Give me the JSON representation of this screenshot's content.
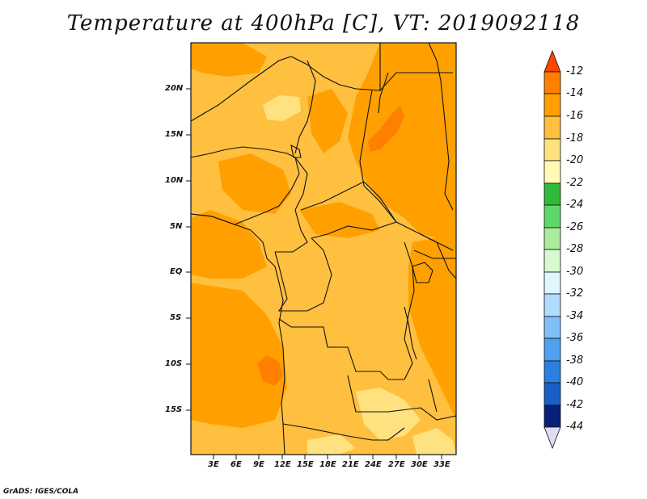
{
  "title": "Temperature at 400hPa [C], VT: 2019092118",
  "credit": "GrADS: IGES/COLA",
  "map": {
    "lon_range": [
      0,
      35
    ],
    "lat_range": [
      -20,
      25
    ],
    "lat_ticks": [
      "20N",
      "15N",
      "10N",
      "5N",
      "EQ",
      "5S",
      "10S",
      "15S"
    ],
    "lon_ticks": [
      "3E",
      "6E",
      "9E",
      "12E",
      "15E",
      "18E",
      "21E",
      "24E",
      "27E",
      "30E",
      "33E"
    ]
  },
  "colorbar": {
    "labels": [
      "-12",
      "-14",
      "-16",
      "-18",
      "-20",
      "-22",
      "-24",
      "-26",
      "-28",
      "-30",
      "-32",
      "-34",
      "-36",
      "-38",
      "-40",
      "-42",
      "-44"
    ],
    "colors": [
      "#ff4500",
      "#ff7f00",
      "#ffa000",
      "#ffbf3f",
      "#ffe27f",
      "#fffab4",
      "#2fba3a",
      "#5fd86a",
      "#a8ec9c",
      "#d8f8d0",
      "#dff6ff",
      "#b0dcff",
      "#80c0f8",
      "#4ea0f0",
      "#2880e0",
      "#1a5fc8",
      "#1040a8",
      "#08207a",
      "#dcdcf4"
    ]
  },
  "chart_data": {
    "type": "map",
    "title": "Temperature at 400hPa [C], VT: 2019092118",
    "variable": "Temperature",
    "level": "400hPa",
    "units": "C",
    "valid_time": "2019092118",
    "domain": {
      "lon": [
        0,
        35
      ],
      "lat": [
        -20,
        25
      ]
    },
    "contour_levels": [
      -44,
      -42,
      -40,
      -38,
      -36,
      -34,
      -32,
      -30,
      -28,
      -26,
      -24,
      -22,
      -20,
      -18,
      -16,
      -14,
      -12
    ],
    "observed_range": [
      -20,
      -12
    ]
  }
}
